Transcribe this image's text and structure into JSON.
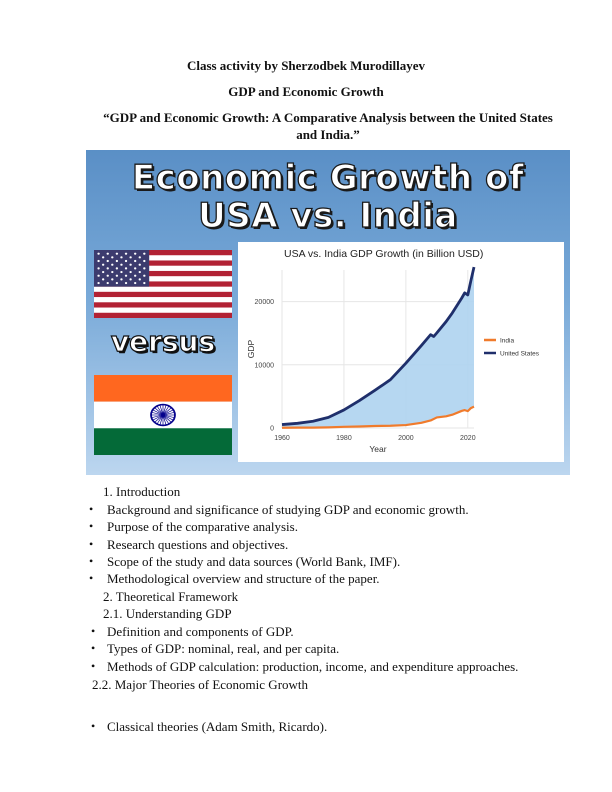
{
  "header": {
    "activity": "Class activity by Sherzodbek Murodillayev",
    "subject": "GDP and Economic Growth",
    "title": "“GDP and Economic Growth: A Comparative Analysis between the United States and India.”"
  },
  "banner": {
    "title_line1": "Economic Growth of",
    "title_line2": "USA vs. India",
    "versus": "versus",
    "colors": {
      "sky": "#78a9d8",
      "usa_series": "#1f2f6b",
      "india_series": "#f07b2c",
      "area_fill": "#aed3ef"
    }
  },
  "chart_data": {
    "type": "line",
    "title": "USA vs. India GDP Growth (in Billion USD)",
    "xlabel": "Year",
    "ylabel": "GDP",
    "xlim": [
      1960,
      2022
    ],
    "ylim": [
      0,
      25000
    ],
    "x_ticks": [
      "1960",
      "1980",
      "2000",
      "2020"
    ],
    "y_ticks": [
      "0",
      "10000",
      "20000"
    ],
    "grid": true,
    "legend_position": "right",
    "series": [
      {
        "name": "India",
        "color": "#f07b2c",
        "x": [
          1960,
          1965,
          1970,
          1975,
          1980,
          1985,
          1990,
          1995,
          2000,
          2005,
          2008,
          2010,
          2013,
          2015,
          2018,
          2019,
          2020,
          2021,
          2022
        ],
        "values": [
          37,
          60,
          62,
          99,
          186,
          233,
          320,
          360,
          468,
          820,
          1190,
          1670,
          1850,
          2100,
          2700,
          2830,
          2670,
          3150,
          3390
        ]
      },
      {
        "name": "United States",
        "color": "#1f2f6b",
        "x": [
          1960,
          1965,
          1970,
          1975,
          1980,
          1985,
          1990,
          1995,
          2000,
          2005,
          2008,
          2009,
          2010,
          2013,
          2015,
          2018,
          2019,
          2020,
          2021,
          2022
        ],
        "values": [
          543,
          743,
          1073,
          1685,
          2857,
          4339,
          5963,
          7640,
          10251,
          13040,
          14770,
          14480,
          15050,
          16840,
          18210,
          20530,
          21380,
          21060,
          23320,
          25460
        ]
      }
    ]
  },
  "outline": {
    "sec1": "1.  Introduction",
    "b1": "Background and significance of studying GDP and economic growth.",
    "b2": "Purpose of the comparative analysis.",
    "b3": "Research questions and objectives.",
    "b4": "Scope of the study and data sources (World Bank, IMF).",
    "b5": "Methodological overview and structure of the paper.",
    "sec2": "2.  Theoretical Framework",
    "sec21": "2.1. Understanding GDP",
    "b6": "Definition and components of GDP.",
    "b7": "Types of GDP: nominal, real, and per capita.",
    "b8": "Methods of GDP calculation: production, income, and expenditure approaches.",
    "sec22": "2.2. Major Theories of Economic Growth",
    "b9": "Classical theories (Adam Smith, Ricardo)."
  },
  "bullet_glyph": "•"
}
